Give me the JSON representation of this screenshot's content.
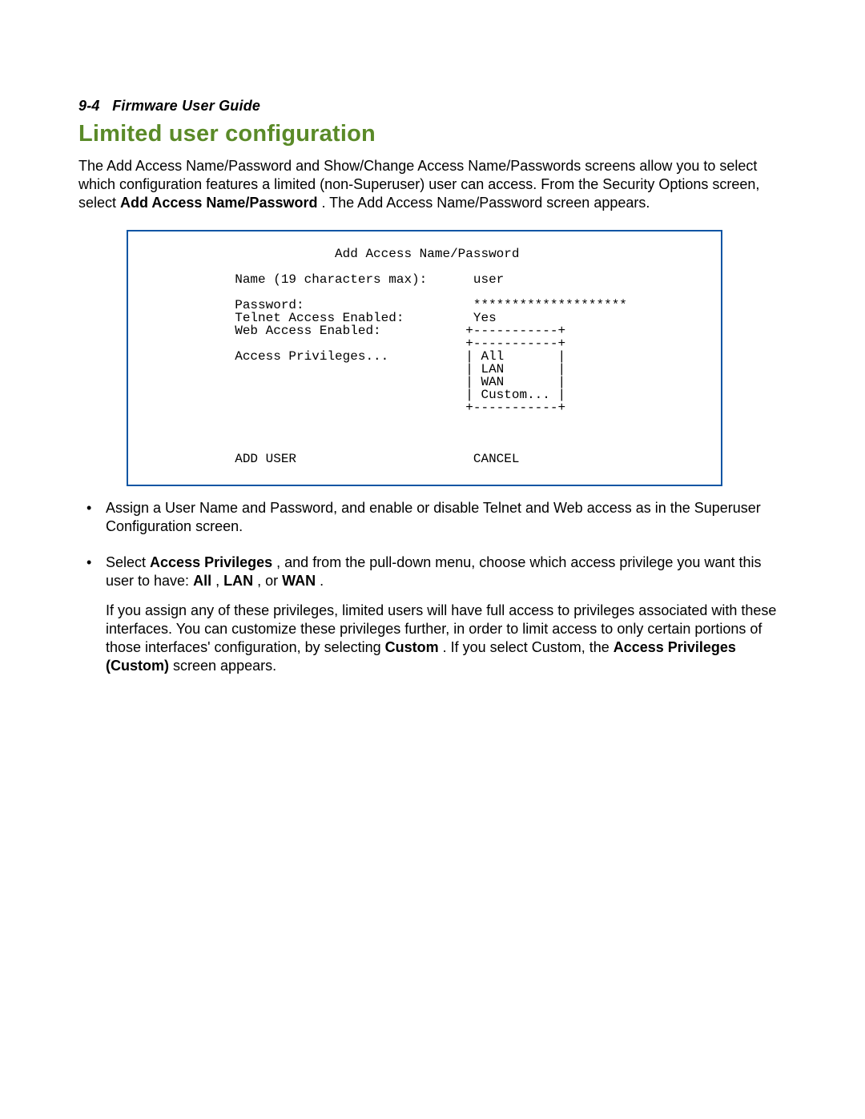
{
  "header": {
    "page_ref": "9-4",
    "book_title": "Firmware User Guide"
  },
  "section_title": "Limited user configuration",
  "intro": {
    "pre": "The Add Access Name/Password and Show/Change Access Name/Passwords screens allow you to select which configuration features a limited (non-Superuser) user can access. From the Security Options screen, select ",
    "bold": "Add Access Name/Password",
    "post": ". The Add Access Name/Password screen appears."
  },
  "terminal": {
    "border_color": "#0a55a4",
    "font_family": "Courier New",
    "lines": [
      "                         Add Access Name/Password",
      "",
      "            Name (19 characters max):      user",
      "",
      "            Password:                      ********************",
      "            Telnet Access Enabled:         Yes",
      "            Web Access Enabled:           +-----------+",
      "                                          +-----------+",
      "            Access Privileges...          | All       |",
      "                                          | LAN       |",
      "                                          | WAN       |",
      "                                          | Custom... |",
      "                                          +-----------+",
      "",
      "",
      "",
      "            ADD USER                       CANCEL"
    ]
  },
  "bullets": {
    "item1": "Assign a User Name and Password, and enable or disable Telnet and Web access as in the Superuser Configuration screen.",
    "item2": {
      "p1": {
        "s1": "Select ",
        "b1": "Access Privileges",
        "s2": ", and from the pull-down menu, choose which access privilege you want this user to have: ",
        "b2": "All",
        "s3": ", ",
        "b3": "LAN",
        "s4": ", or ",
        "b4": "WAN",
        "s5": "."
      },
      "p2": {
        "s1": "If you assign any of these privileges, limited users will have full access to privileges associated with these interfaces. You can customize these privileges further, in order to limit access to only certain portions of those interfaces' configuration, by selecting ",
        "b1": "Custom",
        "s2": ". If you select Custom, the ",
        "b2": "Access Privileges (Custom)",
        "s3": " screen appears."
      }
    }
  }
}
